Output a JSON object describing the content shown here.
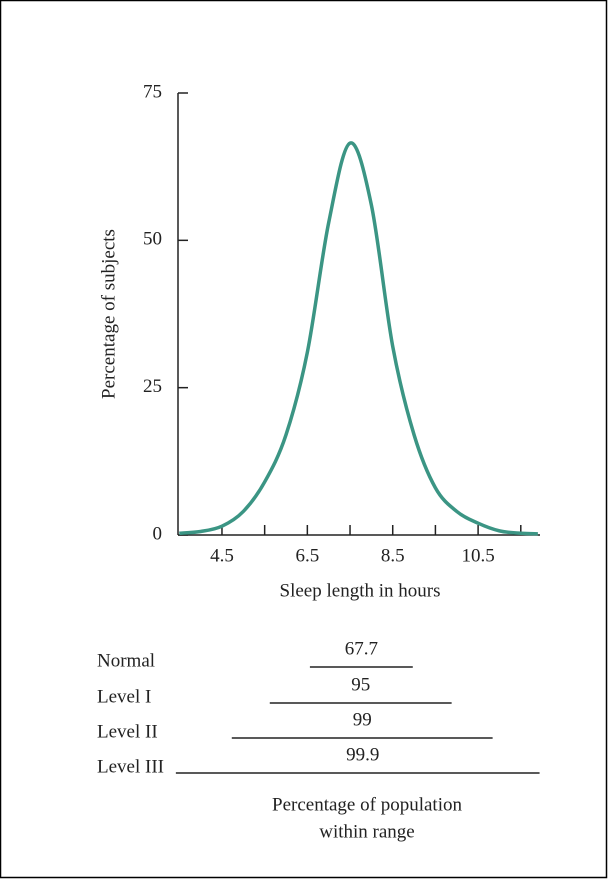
{
  "chart_data": {
    "type": "line",
    "ylabel": "Percentage of subjects",
    "xlabel": "Sleep length in hours",
    "x": [
      3.5,
      4.0,
      4.5,
      5.0,
      5.5,
      6.0,
      6.5,
      7.0,
      7.5,
      8.0,
      8.5,
      9.0,
      9.5,
      10.0,
      10.5,
      11.0,
      11.5,
      11.9
    ],
    "values": [
      0.3,
      0.6,
      1.5,
      4,
      9,
      17,
      31,
      53,
      66.5,
      56,
      32,
      17,
      8,
      4,
      2,
      0.7,
      0.3,
      0.2
    ],
    "color": "#3b9584",
    "xlim": [
      3.47,
      11.95
    ],
    "xticks": [
      4.5,
      6.5,
      8.5,
      10.5
    ],
    "xminor_ticks": [
      5.5,
      7.5,
      9.5,
      11.5
    ],
    "ylim": [
      0,
      75
    ],
    "yticks": [
      0,
      25,
      50,
      75
    ],
    "ranges": [
      {
        "label": "Normal",
        "value": 67.7,
        "from": 6.56,
        "to": 8.97
      },
      {
        "label": "Level I",
        "value": 95,
        "from": 5.62,
        "to": 9.88
      },
      {
        "label": "Level II",
        "value": 99,
        "from": 4.73,
        "to": 10.84
      },
      {
        "label": "Level III",
        "value": 99.9,
        "from": 3.42,
        "to": 11.94
      }
    ],
    "ranges_caption": [
      "Percentage of population",
      "within range"
    ]
  }
}
